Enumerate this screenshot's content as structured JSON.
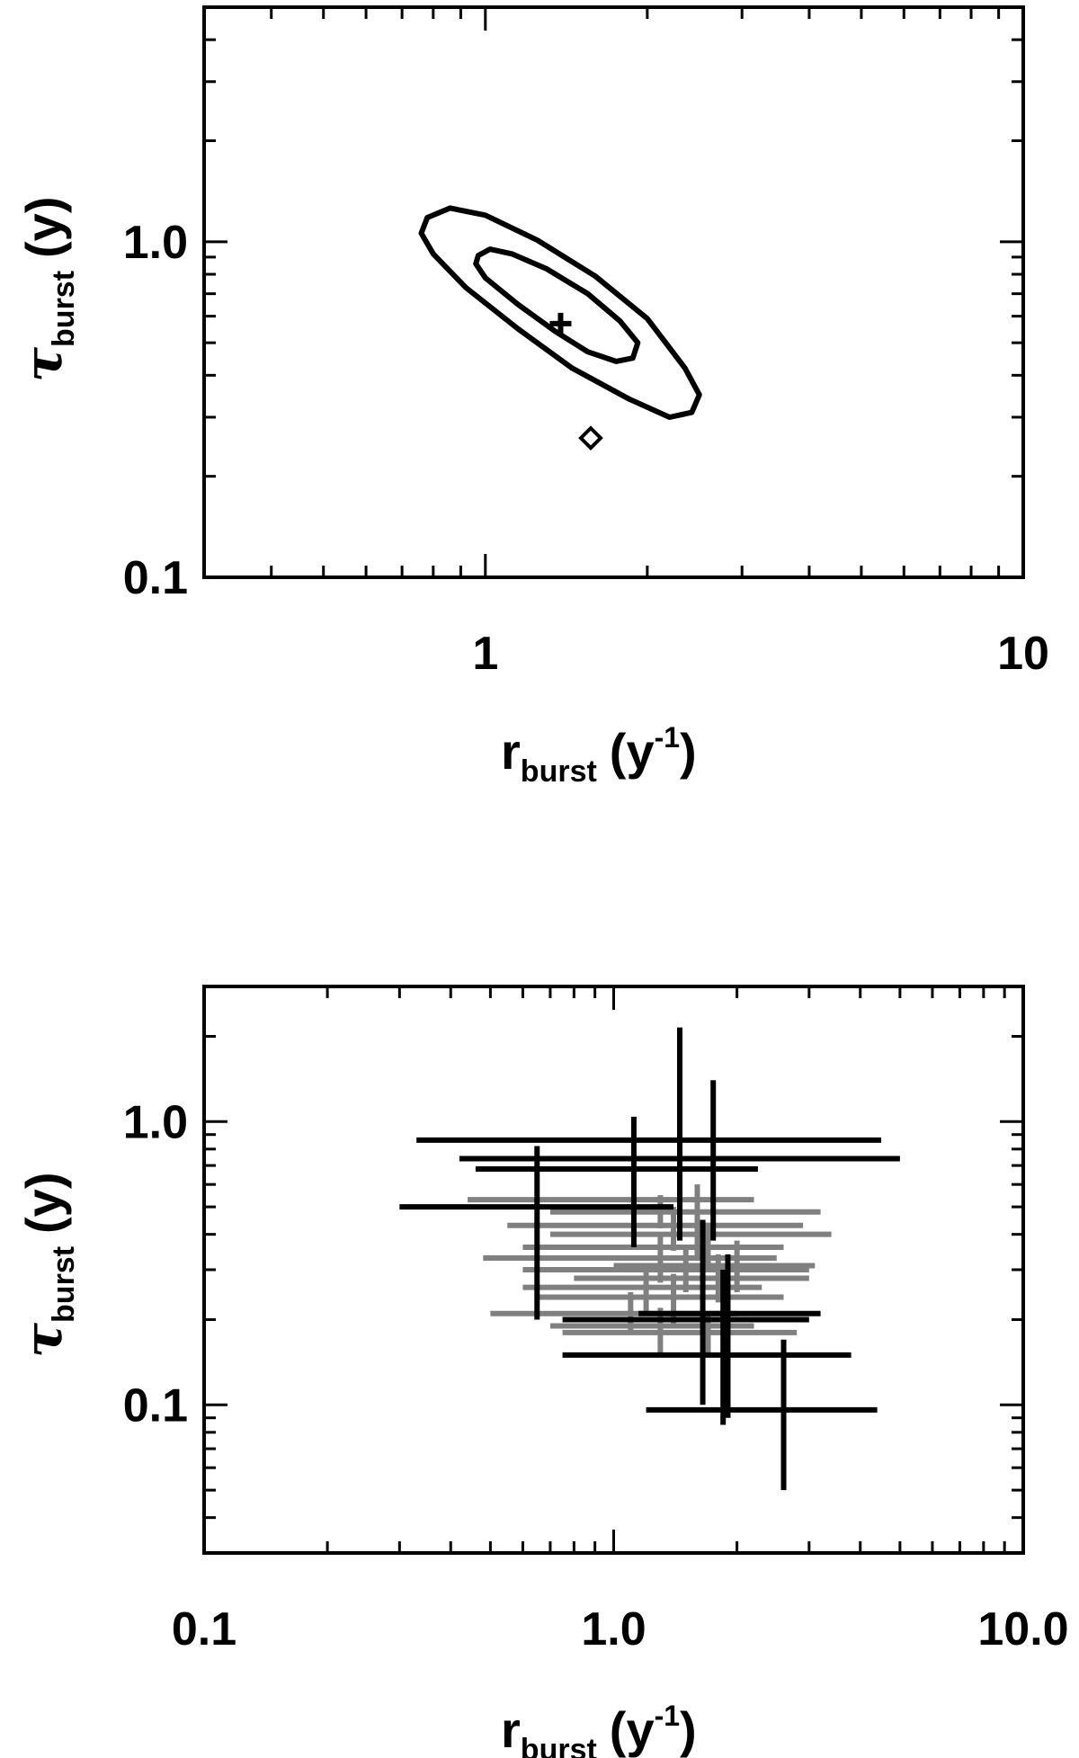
{
  "colors": {
    "axis": "#000000",
    "primary": "#000000",
    "secondary": "#808080"
  },
  "chart_data": [
    {
      "type": "contour",
      "x_scale": "log",
      "y_scale": "log",
      "xlim": [
        0.3,
        10
      ],
      "ylim": [
        0.1,
        5
      ],
      "x_ticks": [
        {
          "value": 1,
          "label": "1"
        },
        {
          "value": 10,
          "label": "10"
        }
      ],
      "y_ticks": [
        {
          "value": 1.0,
          "label": "1.0"
        },
        {
          "value": 0.1,
          "label": "0.1"
        }
      ],
      "xlabel": {
        "main": "r",
        "sub": "burst",
        "suffix_open": "(y",
        "sup": "-1",
        "suffix_close": ")"
      },
      "ylabel": {
        "main": "τ",
        "sub": "burst",
        "suffix": "(y)"
      },
      "contours": [
        {
          "level": "inner",
          "points": [
            [
              0.97,
              0.91
            ],
            [
              1.02,
              0.95
            ],
            [
              1.12,
              0.92
            ],
            [
              1.3,
              0.83
            ],
            [
              1.55,
              0.7
            ],
            [
              1.78,
              0.58
            ],
            [
              1.92,
              0.5
            ],
            [
              1.88,
              0.45
            ],
            [
              1.75,
              0.44
            ],
            [
              1.55,
              0.47
            ],
            [
              1.35,
              0.54
            ],
            [
              1.15,
              0.65
            ],
            [
              1.0,
              0.78
            ],
            [
              0.96,
              0.86
            ]
          ]
        },
        {
          "level": "outer",
          "points": [
            [
              0.78,
              1.18
            ],
            [
              0.86,
              1.26
            ],
            [
              1.0,
              1.2
            ],
            [
              1.25,
              1.01
            ],
            [
              1.6,
              0.79
            ],
            [
              2.0,
              0.59
            ],
            [
              2.35,
              0.42
            ],
            [
              2.5,
              0.35
            ],
            [
              2.42,
              0.31
            ],
            [
              2.2,
              0.3
            ],
            [
              1.85,
              0.34
            ],
            [
              1.45,
              0.42
            ],
            [
              1.15,
              0.55
            ],
            [
              0.92,
              0.73
            ],
            [
              0.8,
              0.92
            ],
            [
              0.76,
              1.06
            ]
          ]
        }
      ],
      "best_fit": {
        "marker": "plus",
        "x": 1.38,
        "y": 0.57
      },
      "reference": {
        "marker": "diamond",
        "x": 1.57,
        "y": 0.26
      }
    },
    {
      "type": "scatter",
      "x_scale": "log",
      "y_scale": "log",
      "xlim": [
        0.1,
        10
      ],
      "ylim": [
        0.03,
        3.0
      ],
      "x_ticks": [
        {
          "value": 0.1,
          "label": "0.1"
        },
        {
          "value": 1.0,
          "label": "1.0"
        },
        {
          "value": 10.0,
          "label": "10.0"
        }
      ],
      "y_ticks": [
        {
          "value": 1.0,
          "label": "1.0"
        },
        {
          "value": 0.1,
          "label": "0.1"
        }
      ],
      "xlabel": {
        "main": "r",
        "sub": "burst",
        "suffix_open": "(y",
        "sup": "-1",
        "suffix_close": ")"
      },
      "ylabel": {
        "main": "τ",
        "sub": "burst",
        "suffix": "(y)"
      },
      "series": [
        {
          "color": "#808080",
          "points": [
            {
              "x": 1.6,
              "y": 0.53,
              "xlo": 0.44,
              "xhi": 2.2,
              "ylo": 0.44,
              "yhi": 0.6
            },
            {
              "x": 1.3,
              "y": 0.48,
              "xlo": 0.7,
              "xhi": 3.2,
              "ylo": 0.42,
              "yhi": 0.55
            },
            {
              "x": 1.4,
              "y": 0.43,
              "xlo": 0.55,
              "xhi": 2.9,
              "ylo": 0.35,
              "yhi": 0.5
            },
            {
              "x": 1.6,
              "y": 0.4,
              "xlo": 0.7,
              "xhi": 3.4,
              "ylo": 0.33,
              "yhi": 0.48
            },
            {
              "x": 1.7,
              "y": 0.36,
              "xlo": 0.6,
              "xhi": 2.6,
              "ylo": 0.3,
              "yhi": 0.44
            },
            {
              "x": 1.3,
              "y": 0.33,
              "xlo": 0.48,
              "xhi": 2.5,
              "ylo": 0.27,
              "yhi": 0.4
            },
            {
              "x": 1.5,
              "y": 0.3,
              "xlo": 0.6,
              "xhi": 3.0,
              "ylo": 0.25,
              "yhi": 0.36
            },
            {
              "x": 1.8,
              "y": 0.28,
              "xlo": 0.8,
              "xhi": 3.0,
              "ylo": 0.23,
              "yhi": 0.34
            },
            {
              "x": 1.2,
              "y": 0.26,
              "xlo": 0.6,
              "xhi": 2.3,
              "ylo": 0.21,
              "yhi": 0.31
            },
            {
              "x": 1.4,
              "y": 0.24,
              "xlo": 0.65,
              "xhi": 2.6,
              "ylo": 0.19,
              "yhi": 0.29
            },
            {
              "x": 1.1,
              "y": 0.21,
              "xlo": 0.5,
              "xhi": 2.0,
              "ylo": 0.18,
              "yhi": 0.25
            },
            {
              "x": 1.3,
              "y": 0.19,
              "xlo": 0.7,
              "xhi": 2.2,
              "ylo": 0.15,
              "yhi": 0.22
            },
            {
              "x": 1.7,
              "y": 0.18,
              "xlo": 0.75,
              "xhi": 2.8,
              "ylo": 0.15,
              "yhi": 0.21
            },
            {
              "x": 2.0,
              "y": 0.31,
              "xlo": 1.0,
              "xhi": 3.1,
              "ylo": 0.25,
              "yhi": 0.38
            }
          ]
        },
        {
          "color": "#000000",
          "points": [
            {
              "x": 1.45,
              "y": 0.86,
              "xlo": 0.33,
              "xhi": 4.5,
              "ylo": 0.38,
              "yhi": 2.15
            },
            {
              "x": 1.75,
              "y": 0.74,
              "xlo": 0.42,
              "xhi": 5.0,
              "ylo": 0.38,
              "yhi": 1.4
            },
            {
              "x": 1.12,
              "y": 0.68,
              "xlo": 0.46,
              "xhi": 2.25,
              "ylo": 0.36,
              "yhi": 1.04
            },
            {
              "x": 0.65,
              "y": 0.5,
              "xlo": 0.3,
              "xhi": 1.4,
              "ylo": 0.2,
              "yhi": 0.82
            },
            {
              "x": 1.9,
              "y": 0.21,
              "xlo": 1.15,
              "xhi": 3.2,
              "ylo": 0.09,
              "yhi": 0.34
            },
            {
              "x": 1.65,
              "y": 0.2,
              "xlo": 0.75,
              "xhi": 3.0,
              "ylo": 0.1,
              "yhi": 0.45
            },
            {
              "x": 1.85,
              "y": 0.15,
              "xlo": 0.75,
              "xhi": 3.8,
              "ylo": 0.085,
              "yhi": 0.3
            },
            {
              "x": 2.6,
              "y": 0.096,
              "xlo": 1.2,
              "xhi": 4.4,
              "ylo": 0.05,
              "yhi": 0.17
            }
          ]
        }
      ]
    }
  ]
}
